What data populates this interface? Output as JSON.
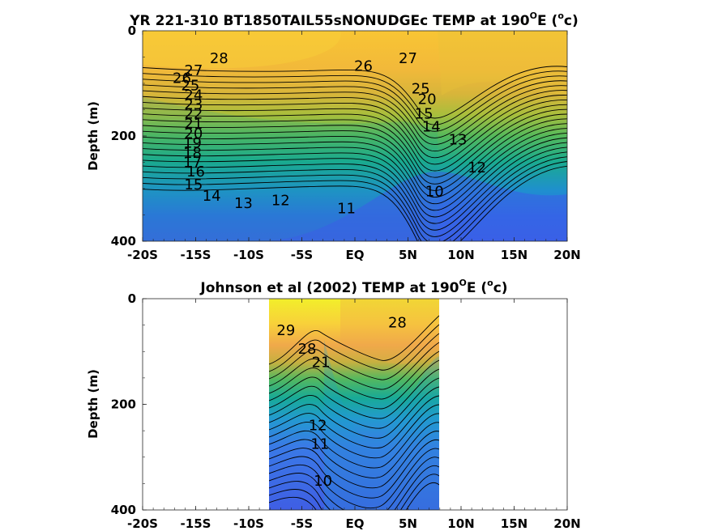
{
  "chart_data": [
    {
      "type": "contour",
      "title_prefix": "YR 221-310 BT1850TAIL55sNONUDGEc TEMP at 190",
      "title_deg_sup": "O",
      "title_mid": "E (",
      "title_unit_sup": "o",
      "title_suffix": "c)",
      "ylabel": "Depth (m)",
      "xticks": [
        "-20S",
        "-15S",
        "-10S",
        "-5S",
        "EQ",
        "5N",
        "10N",
        "15N",
        "20N"
      ],
      "yticks": [
        "0",
        "200",
        "400"
      ],
      "xlim": [
        -20,
        20
      ],
      "ylim": [
        0,
        400
      ],
      "contour_labels": [
        {
          "text": "28",
          "lat": -12.8,
          "depth": 52
        },
        {
          "text": "26",
          "lat": 0.8,
          "depth": 67
        },
        {
          "text": "27",
          "lat": 5.0,
          "depth": 52
        },
        {
          "text": "27",
          "lat": -15.2,
          "depth": 75
        },
        {
          "text": "26",
          "lat": -16.3,
          "depth": 90
        },
        {
          "text": "25",
          "lat": -15.5,
          "depth": 104
        },
        {
          "text": "24",
          "lat": -15.2,
          "depth": 122
        },
        {
          "text": "23",
          "lat": -15.2,
          "depth": 140
        },
        {
          "text": "22",
          "lat": -15.2,
          "depth": 158
        },
        {
          "text": "21",
          "lat": -15.2,
          "depth": 177
        },
        {
          "text": "20",
          "lat": -15.2,
          "depth": 195
        },
        {
          "text": "19",
          "lat": -15.3,
          "depth": 213
        },
        {
          "text": "18",
          "lat": -15.3,
          "depth": 232
        },
        {
          "text": "17",
          "lat": -15.3,
          "depth": 250
        },
        {
          "text": "16",
          "lat": -15.0,
          "depth": 268
        },
        {
          "text": "15",
          "lat": -15.2,
          "depth": 292
        },
        {
          "text": "14",
          "lat": -13.5,
          "depth": 314
        },
        {
          "text": "13",
          "lat": -10.5,
          "depth": 328
        },
        {
          "text": "12",
          "lat": -7.0,
          "depth": 322
        },
        {
          "text": "11",
          "lat": -0.8,
          "depth": 338
        },
        {
          "text": "10",
          "lat": 7.5,
          "depth": 305
        },
        {
          "text": "13",
          "lat": 9.7,
          "depth": 207
        },
        {
          "text": "12",
          "lat": 11.5,
          "depth": 260
        },
        {
          "text": "25",
          "lat": 6.2,
          "depth": 110
        },
        {
          "text": "20",
          "lat": 6.8,
          "depth": 130
        },
        {
          "text": "15",
          "lat": 6.5,
          "depth": 158
        },
        {
          "text": "14",
          "lat": 7.2,
          "depth": 182
        }
      ]
    },
    {
      "type": "contour",
      "title_prefix": "Johnson et al (2002) TEMP at 190",
      "title_deg_sup": "O",
      "title_mid": "E (",
      "title_unit_sup": "o",
      "title_suffix": "c)",
      "ylabel": "Depth (m)",
      "xticks": [
        "-20S",
        "-15S",
        "-10S",
        "-5S",
        "EQ",
        "5N",
        "10N",
        "15N",
        "20N"
      ],
      "yticks": [
        "0",
        "200",
        "400"
      ],
      "xlim": [
        -20,
        20
      ],
      "ylim": [
        0,
        400
      ],
      "data_extent_lat": [
        -8,
        8
      ],
      "contour_labels": [
        {
          "text": "29",
          "lat": -6.5,
          "depth": 60
        },
        {
          "text": "28",
          "lat": 4.0,
          "depth": 45
        },
        {
          "text": "28",
          "lat": -4.5,
          "depth": 95
        },
        {
          "text": "21",
          "lat": -3.2,
          "depth": 120
        },
        {
          "text": "12",
          "lat": -3.5,
          "depth": 240
        },
        {
          "text": "11",
          "lat": -3.3,
          "depth": 275
        },
        {
          "text": "10",
          "lat": -3.0,
          "depth": 345
        }
      ]
    }
  ]
}
